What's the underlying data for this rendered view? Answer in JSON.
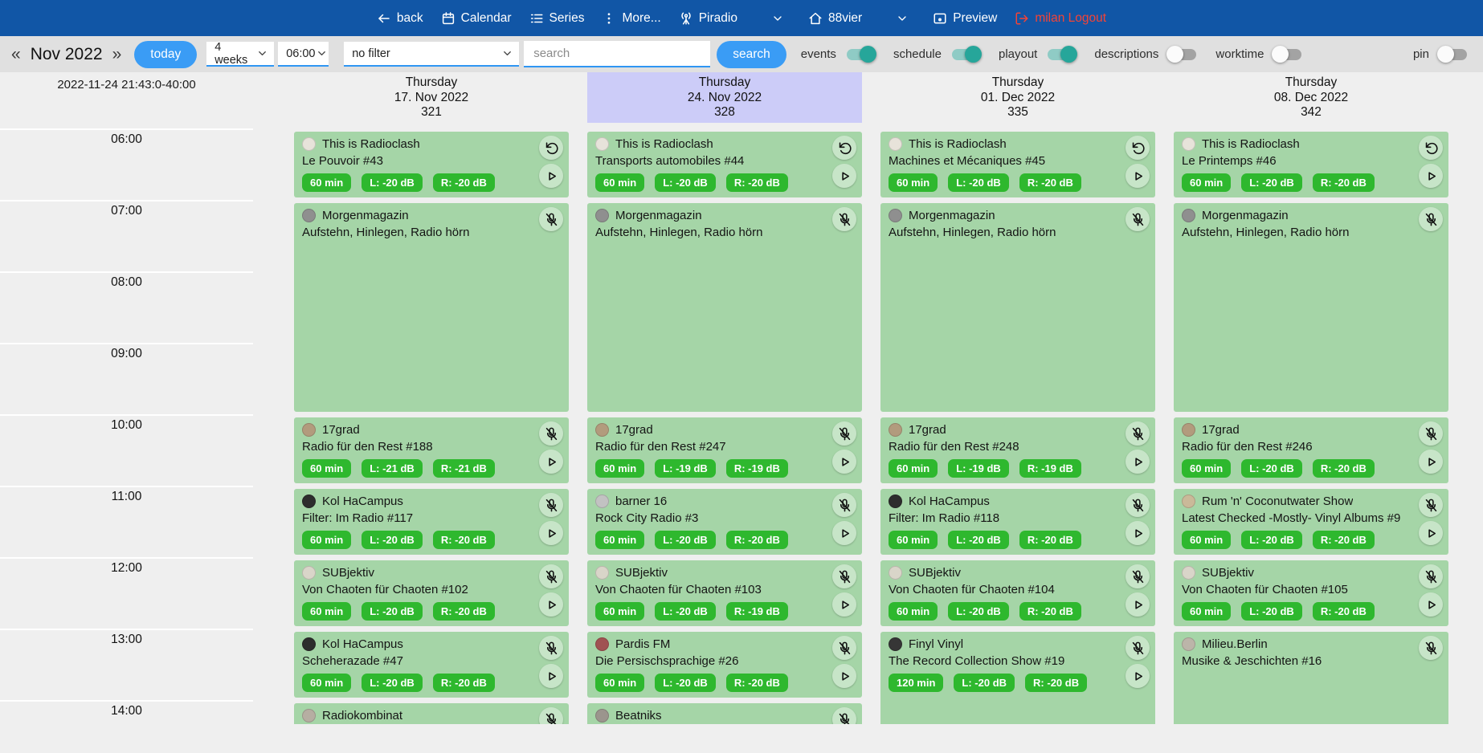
{
  "navbar": {
    "items": [
      {
        "id": "back",
        "label": "back",
        "icon": "back",
        "chevron": false
      },
      {
        "id": "calendar",
        "label": "Calendar",
        "icon": "calendar",
        "chevron": false
      },
      {
        "id": "series",
        "label": "Series",
        "icon": "series",
        "chevron": false
      },
      {
        "id": "more",
        "label": "More...",
        "icon": "more",
        "chevron": false
      },
      {
        "id": "piradio",
        "label": "Piradio",
        "icon": "antenna",
        "chevron": true
      },
      {
        "id": "88vier",
        "label": "88vier",
        "icon": "home",
        "chevron": true
      },
      {
        "id": "preview",
        "label": "Preview",
        "icon": "preview",
        "chevron": false
      }
    ],
    "logout": {
      "label": "milan Logout",
      "icon": "logout"
    }
  },
  "toolbar": {
    "prev_label": "«",
    "month_label": "Nov 2022",
    "next_label": "»",
    "today_label": "today",
    "range_value": "4 weeks",
    "time_value": "06:00",
    "filter_value": "no filter",
    "search_placeholder": "search",
    "search_button_label": "search",
    "toggles": [
      {
        "id": "events",
        "label": "events",
        "on": true,
        "align_right": false
      },
      {
        "id": "schedule",
        "label": "schedule",
        "on": true,
        "align_right": false
      },
      {
        "id": "playout",
        "label": "playout",
        "on": true,
        "align_right": false
      },
      {
        "id": "descriptions",
        "label": "descriptions",
        "on": false,
        "align_right": false
      },
      {
        "id": "worktime",
        "label": "worktime",
        "on": false,
        "align_right": false
      },
      {
        "id": "pin",
        "label": "pin",
        "on": false,
        "align_right": true
      }
    ]
  },
  "calendar": {
    "timestamp": "2022-11-24 21:43:0-40:00",
    "time_labels": [
      "06:00",
      "07:00",
      "08:00",
      "09:00",
      "10:00",
      "11:00",
      "12:00",
      "13:00",
      "14:00"
    ],
    "columns": [
      {
        "weekday": "Thursday",
        "date": "17. Nov 2022",
        "number": "321",
        "selected": false,
        "events": [
          {
            "series": "This is Radioclash",
            "episode": "Le Pouvoir #43",
            "start": "06:00",
            "duration_min": 60,
            "status_icon": "reload",
            "play": true,
            "avatar": "#e7e3da",
            "badges": [
              "60 min",
              "L: -20 dB",
              "R: -20 dB"
            ]
          },
          {
            "series": "Morgenmagazin",
            "episode": "Aufstehn, Hinlegen, Radio hörn",
            "start": "07:00",
            "duration_min": 180,
            "status_icon": "mic-off",
            "play": false,
            "avatar": "#8f8f8f",
            "badges": []
          },
          {
            "series": "17grad",
            "episode": "Radio für den Rest #188",
            "start": "10:00",
            "duration_min": 60,
            "status_icon": "mic-off",
            "play": true,
            "avatar": "#b29b7d",
            "badges": [
              "60 min",
              "L: -21 dB",
              "R: -21 dB"
            ]
          },
          {
            "series": "Kol HaCampus",
            "episode": "Filter: Im Radio #117",
            "start": "11:00",
            "duration_min": 60,
            "status_icon": "mic-off",
            "play": true,
            "avatar": "#2d2d2d",
            "badges": [
              "60 min",
              "L: -20 dB",
              "R: -20 dB"
            ]
          },
          {
            "series": "SUBjektiv",
            "episode": "Von Chaoten für Chaoten #102",
            "start": "12:00",
            "duration_min": 60,
            "status_icon": "mic-off",
            "play": true,
            "avatar": "#d9d5c9",
            "badges": [
              "60 min",
              "L: -20 dB",
              "R: -20 dB"
            ]
          },
          {
            "series": "Kol HaCampus",
            "episode": "Scheherazade #47",
            "start": "13:00",
            "duration_min": 60,
            "status_icon": "mic-off",
            "play": true,
            "avatar": "#2d2d2d",
            "badges": [
              "60 min",
              "L: -20 dB",
              "R: -20 dB"
            ]
          },
          {
            "series": "Radiokombinat",
            "episode": "",
            "start": "14:00",
            "duration_min": 60,
            "status_icon": "mic-off",
            "play": false,
            "avatar": "#b6aea2",
            "badges": []
          }
        ]
      },
      {
        "weekday": "Thursday",
        "date": "24. Nov 2022",
        "number": "328",
        "selected": true,
        "events": [
          {
            "series": "This is Radioclash",
            "episode": "Transports automobiles #44",
            "start": "06:00",
            "duration_min": 60,
            "status_icon": "reload",
            "play": true,
            "avatar": "#e7e3da",
            "badges": [
              "60 min",
              "L: -20 dB",
              "R: -20 dB"
            ]
          },
          {
            "series": "Morgenmagazin",
            "episode": "Aufstehn, Hinlegen, Radio hörn",
            "start": "07:00",
            "duration_min": 180,
            "status_icon": "mic-off",
            "play": false,
            "avatar": "#8f8f8f",
            "badges": []
          },
          {
            "series": "17grad",
            "episode": "Radio für den Rest #247",
            "start": "10:00",
            "duration_min": 60,
            "status_icon": "mic-off",
            "play": true,
            "avatar": "#b29b7d",
            "badges": [
              "60 min",
              "L: -19 dB",
              "R: -19 dB"
            ]
          },
          {
            "series": "barner 16",
            "episode": "Rock City Radio #3",
            "start": "11:00",
            "duration_min": 60,
            "status_icon": "mic-off",
            "play": true,
            "avatar": "#c2c2c2",
            "badges": [
              "60 min",
              "L: -20 dB",
              "R: -20 dB"
            ]
          },
          {
            "series": "SUBjektiv",
            "episode": "Von Chaoten für Chaoten #103",
            "start": "12:00",
            "duration_min": 60,
            "status_icon": "mic-off",
            "play": true,
            "avatar": "#d9d5c9",
            "badges": [
              "60 min",
              "L: -20 dB",
              "R: -19 dB"
            ]
          },
          {
            "series": "Pardis FM",
            "episode": "Die Persischsprachige #26",
            "start": "13:00",
            "duration_min": 60,
            "status_icon": "mic-off",
            "play": true,
            "avatar": "#a05252",
            "badges": [
              "60 min",
              "L: -20 dB",
              "R: -20 dB"
            ]
          },
          {
            "series": "Beatniks",
            "episode": "",
            "start": "14:00",
            "duration_min": 60,
            "status_icon": "mic-off",
            "play": false,
            "avatar": "#9b958d",
            "badges": []
          }
        ]
      },
      {
        "weekday": "Thursday",
        "date": "01. Dec 2022",
        "number": "335",
        "selected": false,
        "events": [
          {
            "series": "This is Radioclash",
            "episode": "Machines et Mécaniques #45",
            "start": "06:00",
            "duration_min": 60,
            "status_icon": "reload",
            "play": true,
            "avatar": "#e7e3da",
            "badges": [
              "60 min",
              "L: -20 dB",
              "R: -20 dB"
            ]
          },
          {
            "series": "Morgenmagazin",
            "episode": "Aufstehn, Hinlegen, Radio hörn",
            "start": "07:00",
            "duration_min": 180,
            "status_icon": "mic-off",
            "play": false,
            "avatar": "#8f8f8f",
            "badges": []
          },
          {
            "series": "17grad",
            "episode": "Radio für den Rest #248",
            "start": "10:00",
            "duration_min": 60,
            "status_icon": "mic-off",
            "play": true,
            "avatar": "#b29b7d",
            "badges": [
              "60 min",
              "L: -19 dB",
              "R: -19 dB"
            ]
          },
          {
            "series": "Kol HaCampus",
            "episode": "Filter: Im Radio #118",
            "start": "11:00",
            "duration_min": 60,
            "status_icon": "mic-off",
            "play": true,
            "avatar": "#2d2d2d",
            "badges": [
              "60 min",
              "L: -20 dB",
              "R: -20 dB"
            ]
          },
          {
            "series": "SUBjektiv",
            "episode": "Von Chaoten für Chaoten #104",
            "start": "12:00",
            "duration_min": 60,
            "status_icon": "mic-off",
            "play": true,
            "avatar": "#d9d5c9",
            "badges": [
              "60 min",
              "L: -20 dB",
              "R: -20 dB"
            ]
          },
          {
            "series": "Finyl Vinyl",
            "episode": "The Record Collection Show #19",
            "start": "13:00",
            "duration_min": 120,
            "status_icon": "mic-off",
            "play": true,
            "avatar": "#363636",
            "badges": [
              "120 min",
              "L: -20 dB",
              "R: -20 dB"
            ]
          }
        ]
      },
      {
        "weekday": "Thursday",
        "date": "08. Dec 2022",
        "number": "342",
        "selected": false,
        "events": [
          {
            "series": "This is Radioclash",
            "episode": "Le Printemps #46",
            "start": "06:00",
            "duration_min": 60,
            "status_icon": "reload",
            "play": true,
            "avatar": "#e7e3da",
            "badges": [
              "60 min",
              "L: -20 dB",
              "R: -20 dB"
            ]
          },
          {
            "series": "Morgenmagazin",
            "episode": "Aufstehn, Hinlegen, Radio hörn",
            "start": "07:00",
            "duration_min": 180,
            "status_icon": "mic-off",
            "play": false,
            "avatar": "#8f8f8f",
            "badges": []
          },
          {
            "series": "17grad",
            "episode": "Radio für den Rest #246",
            "start": "10:00",
            "duration_min": 60,
            "status_icon": "mic-off",
            "play": true,
            "avatar": "#b29b7d",
            "badges": [
              "60 min",
              "L: -20 dB",
              "R: -20 dB"
            ]
          },
          {
            "series": "Rum 'n' Coconutwater Show",
            "episode": "Latest Checked -Mostly- Vinyl Albums #9",
            "start": "11:00",
            "duration_min": 60,
            "status_icon": "mic-off",
            "play": true,
            "avatar": "#cab999",
            "badges": [
              "60 min",
              "L: -20 dB",
              "R: -20 dB"
            ]
          },
          {
            "series": "SUBjektiv",
            "episode": "Von Chaoten für Chaoten #105",
            "start": "12:00",
            "duration_min": 60,
            "status_icon": "mic-off",
            "play": true,
            "avatar": "#d9d5c9",
            "badges": [
              "60 min",
              "L: -20 dB",
              "R: -20 dB"
            ]
          },
          {
            "series": "Milieu.Berlin",
            "episode": "Musike & Jeschichten #16",
            "start": "13:00",
            "duration_min": 120,
            "status_icon": "mic-off",
            "play": false,
            "avatar": "#bcb5a9",
            "badges": []
          }
        ]
      }
    ]
  },
  "colors": {
    "nav_blue": "#1156a6",
    "logout_red": "#f44336",
    "toolbar_bg": "#e0e0e0",
    "page_bg": "#efefef",
    "accent_blue": "#3a9cf5",
    "select_underline": "#2f96f3",
    "card_green": "#a5d5a7",
    "badge_green": "#2eb82e",
    "selected_lavender": "#ccccf8",
    "toggle_on": "#26a69a",
    "toggle_on_track": "#8fcbc5",
    "hour_line": "#ffffff"
  }
}
